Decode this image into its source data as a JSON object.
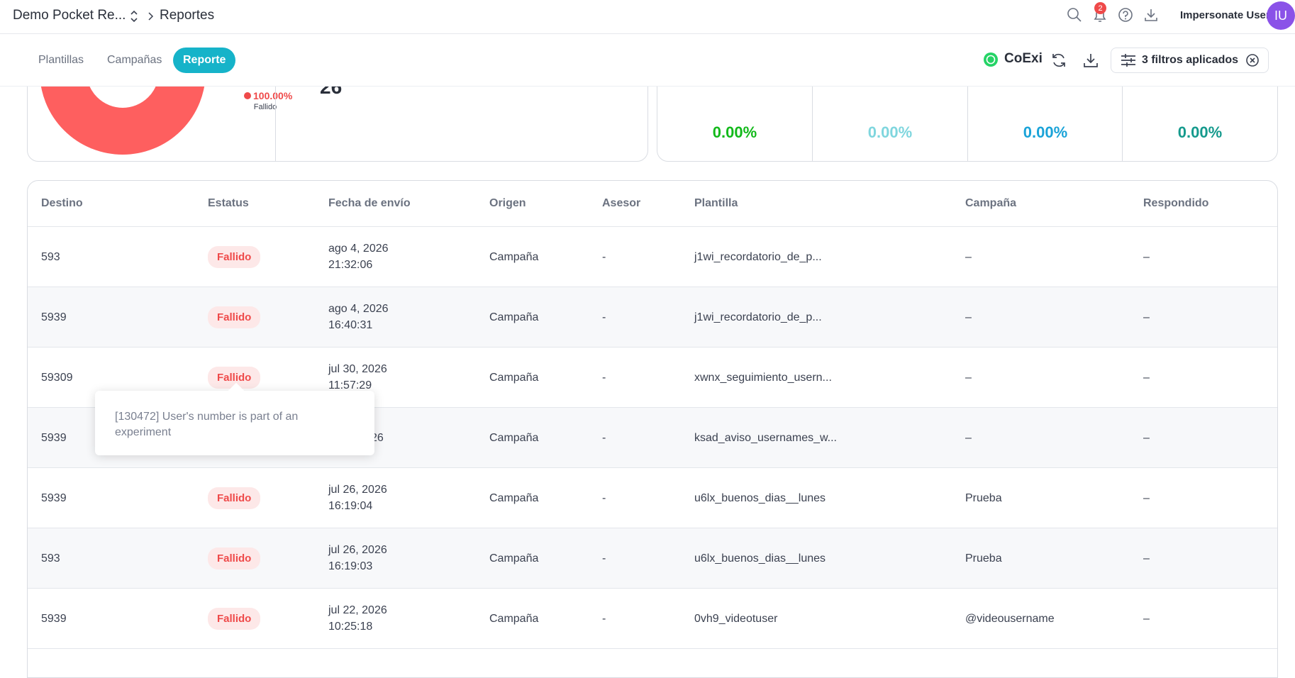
{
  "header": {
    "breadcrumb": [
      "Demo Pocket Re...",
      "Reportes"
    ],
    "notifications": "2",
    "user": "Impersonate User",
    "avatar": "IU"
  },
  "tabs": [
    "Plantillas",
    "Campañas",
    "Reporte"
  ],
  "channel": "CoExi",
  "filters": "3 filtros aplicados",
  "summary": {
    "total": "26",
    "donut_percent": "100.00%",
    "donut_label": "Fallido",
    "rates": [
      "0.00%",
      "0.00%",
      "0.00%",
      "0.00%"
    ]
  },
  "table": {
    "columns": [
      "Destino",
      "Estatus",
      "Fecha de envío",
      "Origen",
      "Asesor",
      "Plantilla",
      "Campaña",
      "Respondido"
    ],
    "rows": [
      [
        "593",
        "Fallido",
        [
          "ago 4, 2026",
          "21:32:06"
        ],
        "Campaña",
        "-",
        "j1wi_recordatorio_de_p...",
        "–",
        "–"
      ],
      [
        "5939",
        "Fallido",
        [
          "ago 4, 2026",
          "16:40:31"
        ],
        "Campaña",
        "-",
        "j1wi_recordatorio_de_p...",
        "–",
        "–"
      ],
      [
        "59309",
        "Fallido",
        [
          "jul 30, 2026",
          "11:57:29"
        ],
        "Campaña",
        "-",
        "xwnx_seguimiento_usern...",
        "–",
        "–"
      ],
      [
        "5939",
        null,
        [
          "26"
        ],
        "Campaña",
        "-",
        "ksad_aviso_usernames_w...",
        "–",
        "–"
      ],
      [
        "5939",
        "Fallido",
        [
          "jul 26, 2026",
          "16:19:04"
        ],
        "Campaña",
        "-",
        "u6lx_buenos_dias__lunes",
        "Prueba",
        "–"
      ],
      [
        "593",
        "Fallido",
        [
          "jul 26, 2026",
          "16:19:03"
        ],
        "Campaña",
        "-",
        "u6lx_buenos_dias__lunes",
        "Prueba",
        "–"
      ],
      [
        "5939",
        "Fallido",
        [
          "jul 22, 2026",
          "10:25:18"
        ],
        "Campaña",
        "-",
        "0vh9_videotuser",
        "@videousername",
        "–"
      ]
    ]
  },
  "tooltip": "[130472] User's number is part of an experiment"
}
